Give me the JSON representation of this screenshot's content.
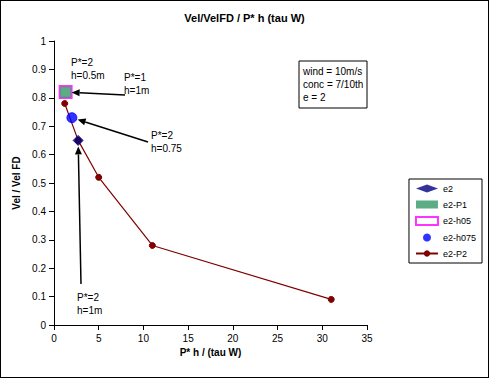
{
  "chart_data": {
    "type": "scatter",
    "title": "Vel/VelFD / P* h (tau W)",
    "x_label": "P* h / (tau W)",
    "y_label": "Vel / Vel FD",
    "xlim": [
      0,
      35
    ],
    "xticks": [
      0,
      5,
      10,
      15,
      20,
      25,
      30,
      35
    ],
    "ylim": [
      0,
      1
    ],
    "yticks": [
      0,
      0.1,
      0.2,
      0.3,
      0.4,
      0.5,
      0.6,
      0.7,
      0.8,
      0.9,
      1
    ],
    "grid": false,
    "legend": "right",
    "series": [
      {
        "name": "e2",
        "type": "scatter",
        "marker": "diamond",
        "color": "#000080",
        "x": [
          2.7
        ],
        "values": [
          0.65
        ]
      },
      {
        "name": "e2-P1",
        "type": "scatter",
        "marker": "square",
        "color": "#339966",
        "x": [
          1.3
        ],
        "values": [
          0.82
        ]
      },
      {
        "name": "e2-h05",
        "type": "scatter",
        "marker": "open_square",
        "color": "#ff00ff",
        "x": [
          1.3
        ],
        "values": [
          0.82
        ]
      },
      {
        "name": "e2-h075",
        "type": "scatter",
        "marker": "circle",
        "color": "#0000ff",
        "x": [
          2.0
        ],
        "values": [
          0.73
        ]
      },
      {
        "name": "e2-P2",
        "type": "line",
        "marker": "circle",
        "color": "#800000",
        "x": [
          1.2,
          2.7,
          5.0,
          11.0,
          31.0
        ],
        "values": [
          0.78,
          0.65,
          0.52,
          0.28,
          0.09
        ]
      }
    ],
    "annotations": [
      {
        "text": "P*=2\nh=0.5m"
      },
      {
        "text": "P*=1\nh=1m",
        "target": "e2-P1"
      },
      {
        "text": "P*=2\nh=0.75",
        "target": "e2-h075"
      },
      {
        "text": "P*=2\nh=1m",
        "target": "e2"
      }
    ],
    "info_box": [
      "wind = 10m/s",
      "conc = 7/10th",
      "e = 2"
    ]
  }
}
